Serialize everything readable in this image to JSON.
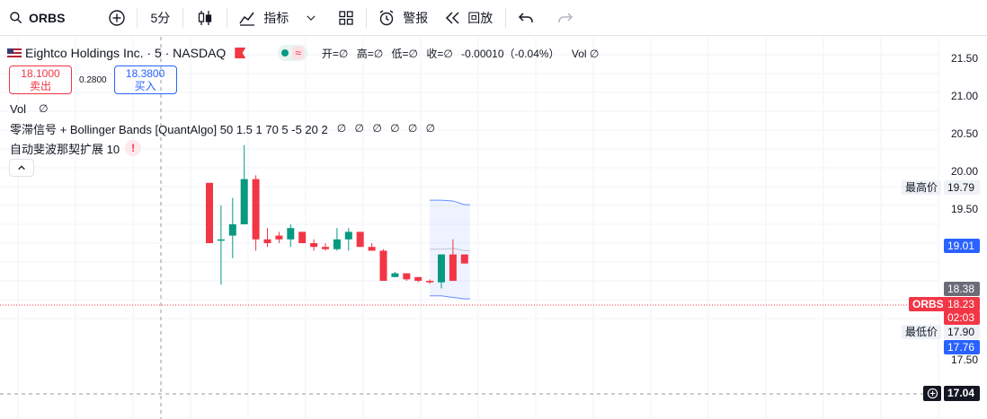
{
  "toolbar": {
    "symbol": "ORBS",
    "interval": "5分",
    "indicators_label": "指标",
    "alert_label": "警报",
    "replay_label": "回放"
  },
  "legend": {
    "title": "Eightco Holdings Inc. · 5 · NASDAQ",
    "ohlc": {
      "open": "开=∅",
      "high": "高=∅",
      "low": "低=∅",
      "close": "收=∅",
      "change": "-0.00010（-0.04%）",
      "vol": "Vol ∅"
    },
    "sell_price": "18.1000",
    "sell_label": "卖出",
    "spread": "0.2800",
    "buy_price": "18.3800",
    "buy_label": "买入",
    "vol_indicator": "Vol",
    "vol_indicator_value": "∅",
    "indicator2": "零滞信号 + Bollinger Bands [QuantAlgo] 50 1.5 1 70 5 -5 20 2",
    "indicator2_values": "∅ ∅ ∅ ∅ ∅ ∅",
    "indicator3": "自动斐波那契扩展 10",
    "warn": "!"
  },
  "axis": {
    "ticks": [
      "21.50",
      "21.00",
      "20.50",
      "20.00",
      "19.50",
      "17.50"
    ],
    "high_label": "最高价",
    "high_value": "19.79",
    "bb_upper": "19.01",
    "buy_tag": "18.38",
    "symbol_tag": "ORBS",
    "last_price": "18.23",
    "countdown": "02:03",
    "low_label": "最低价",
    "low_value": "17.90",
    "bb_lower": "17.76",
    "crosshair_price": "17.04"
  },
  "colors": {
    "up": "#089981",
    "down": "#f23645",
    "blue": "#2962ff",
    "grey_tag": "#6a6d78",
    "dark_tag": "#131722"
  },
  "chart_data": {
    "type": "candlestick",
    "price_axis": [
      17.5,
      21.5
    ],
    "candles": [
      {
        "o": 19.3,
        "h": 19.3,
        "l": 18.5,
        "c": 18.5
      },
      {
        "o": 18.55,
        "h": 19.0,
        "l": 17.95,
        "c": 18.55
      },
      {
        "o": 18.6,
        "h": 19.1,
        "l": 18.3,
        "c": 18.75
      },
      {
        "o": 18.75,
        "h": 19.8,
        "l": 18.75,
        "c": 19.35
      },
      {
        "o": 19.35,
        "h": 19.4,
        "l": 18.4,
        "c": 18.55
      },
      {
        "o": 18.55,
        "h": 18.7,
        "l": 18.45,
        "c": 18.5
      },
      {
        "o": 18.6,
        "h": 18.65,
        "l": 18.5,
        "c": 18.55
      },
      {
        "o": 18.55,
        "h": 18.75,
        "l": 18.45,
        "c": 18.7
      },
      {
        "o": 18.65,
        "h": 18.65,
        "l": 18.5,
        "c": 18.5
      },
      {
        "o": 18.5,
        "h": 18.55,
        "l": 18.4,
        "c": 18.45
      },
      {
        "o": 18.45,
        "h": 18.5,
        "l": 18.4,
        "c": 18.42
      },
      {
        "o": 18.42,
        "h": 18.7,
        "l": 18.4,
        "c": 18.55
      },
      {
        "o": 18.55,
        "h": 18.7,
        "l": 18.4,
        "c": 18.65
      },
      {
        "o": 18.65,
        "h": 18.65,
        "l": 18.45,
        "c": 18.45
      },
      {
        "o": 18.45,
        "h": 18.5,
        "l": 18.4,
        "c": 18.4
      },
      {
        "o": 18.4,
        "h": 18.42,
        "l": 18.0,
        "c": 18.0
      },
      {
        "o": 18.05,
        "h": 18.12,
        "l": 18.05,
        "c": 18.1
      },
      {
        "o": 18.1,
        "h": 18.1,
        "l": 18.0,
        "c": 18.02
      },
      {
        "o": 18.05,
        "h": 18.05,
        "l": 17.98,
        "c": 18.0
      },
      {
        "o": 18.0,
        "h": 18.02,
        "l": 17.96,
        "c": 17.98
      },
      {
        "o": 17.98,
        "h": 18.35,
        "l": 17.9,
        "c": 18.35
      },
      {
        "o": 18.35,
        "h": 18.55,
        "l": 18.0,
        "c": 18.0
      },
      {
        "o": 18.35,
        "h": 18.35,
        "l": 18.23,
        "c": 18.23
      }
    ],
    "bollinger_upper": [
      19.07,
      19.06,
      19.01
    ],
    "bollinger_mid": [
      18.42,
      18.43,
      18.4
    ],
    "bollinger_lower": [
      17.8,
      17.78,
      17.76
    ],
    "bollinger_start_index": 20
  }
}
